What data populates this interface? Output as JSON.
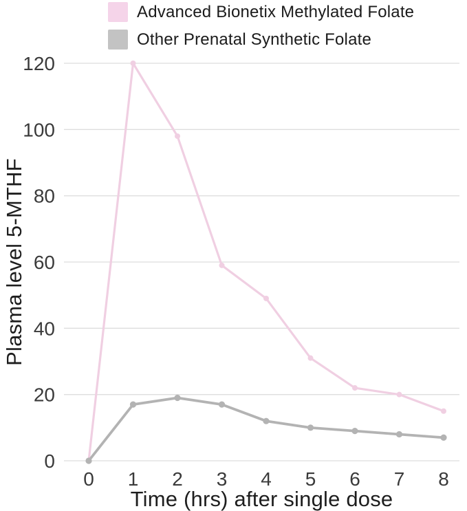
{
  "chart_data": {
    "type": "line",
    "xlabel": "Time (hrs) after single dose",
    "ylabel": "Plasma level 5-MTHF",
    "x": [
      0,
      1,
      2,
      3,
      4,
      5,
      6,
      7,
      8
    ],
    "yticks": [
      0,
      20,
      40,
      60,
      80,
      100,
      120
    ],
    "ylim": [
      0,
      120
    ],
    "xlim": [
      0,
      8
    ],
    "grid": "horizontal",
    "gridline_color": "#dedede",
    "legend_position": "top-left",
    "series": [
      {
        "name": "Advanced Bionetix Methylated Folate",
        "swatch_color": "#f5d4e9",
        "line_color": "#f0cfe2",
        "values": [
          0,
          120,
          98,
          59,
          49,
          31,
          22,
          20,
          15
        ]
      },
      {
        "name": "Other Prenatal Synthetic Folate",
        "swatch_color": "#c3c3c3",
        "line_color": "#b3b3b3",
        "values": [
          0,
          17,
          19,
          17,
          12,
          10,
          9,
          8,
          7
        ]
      }
    ]
  }
}
